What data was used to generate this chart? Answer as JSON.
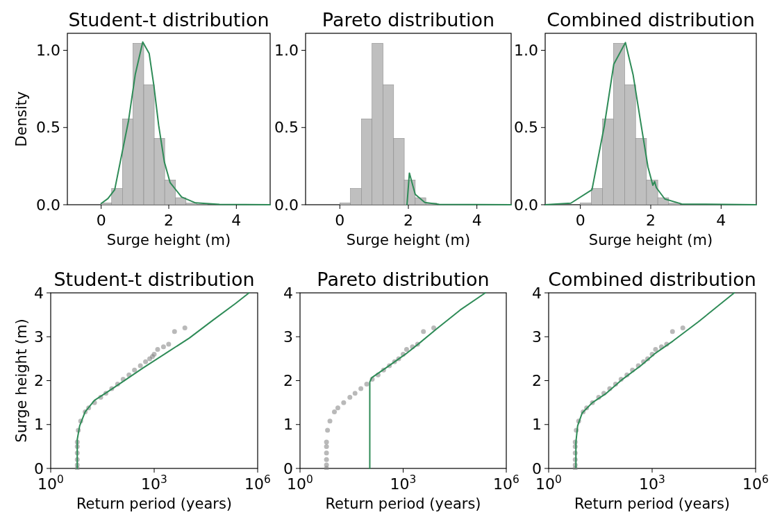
{
  "chart_data": [
    {
      "type": "histogram",
      "title": "Student-t distribution",
      "xlabel": "Surge height (m)",
      "ylabel": "Density",
      "xlim": [
        -1,
        5
      ],
      "ylim": [
        0,
        1.11
      ],
      "xticks": [
        0,
        2,
        4
      ],
      "yticks": [
        {
          "value": 0,
          "label": "0.0"
        },
        {
          "value": 0.5,
          "label": "0.5"
        },
        {
          "value": 1,
          "label": "1.0"
        }
      ],
      "series": [
        {
          "color": "#bfbfbf",
          "bins": [
            0,
            0.31,
            0.63,
            0.94,
            1.26,
            1.57,
            1.88,
            2.2,
            2.51,
            2.83,
            3.14
          ],
          "values": [
            0.012,
            0.105,
            0.556,
            1.045,
            0.777,
            0.43,
            0.16,
            0.045,
            0.01,
            0.003
          ]
        },
        {
          "type": "line",
          "color": "#2e8b57",
          "x": [
            0,
            0.2,
            0.4,
            0.81,
            1.01,
            1.23,
            1.42,
            1.56,
            1.7,
            1.87,
            2.04,
            2.38,
            2.79,
            3.5,
            5
          ],
          "values": [
            0.008,
            0.04,
            0.097,
            0.545,
            0.845,
            1.054,
            0.98,
            0.77,
            0.516,
            0.277,
            0.143,
            0.05,
            0.012,
            0.002,
            0
          ]
        }
      ]
    },
    {
      "type": "histogram",
      "title": "Pareto distribution",
      "xlabel": "Surge height (m)",
      "xlim": [
        -1,
        5
      ],
      "ylim": [
        0,
        1.11
      ],
      "xticks": [
        0,
        2,
        4
      ],
      "yticks": [
        {
          "value": 0,
          "label": "0.0"
        },
        {
          "value": 0.5,
          "label": "0.5"
        },
        {
          "value": 1,
          "label": "1.0"
        }
      ],
      "series": [
        {
          "color": "#bfbfbf",
          "bins": [
            0,
            0.31,
            0.63,
            0.94,
            1.26,
            1.57,
            1.88,
            2.2,
            2.51,
            2.83
          ],
          "values": [
            0.012,
            0.105,
            0.556,
            1.045,
            0.777,
            0.43,
            0.16,
            0.045,
            0.01
          ]
        },
        {
          "type": "line",
          "color": "#2e8b57",
          "x": [
            1.96,
            2.03,
            2.2,
            2.48,
            2.9,
            5
          ],
          "values": [
            0,
            0.205,
            0.067,
            0.015,
            0.002,
            0
          ]
        }
      ]
    },
    {
      "type": "histogram",
      "title": "Combined distribution",
      "xlabel": "Surge height (m)",
      "xlim": [
        -1,
        5
      ],
      "ylim": [
        0,
        1.11
      ],
      "xticks": [
        0,
        2,
        4
      ],
      "yticks": [
        {
          "value": 0,
          "label": "0.0"
        },
        {
          "value": 0.5,
          "label": "0.5"
        },
        {
          "value": 1,
          "label": "1.0"
        }
      ],
      "series": [
        {
          "color": "#bfbfbf",
          "bins": [
            0,
            0.31,
            0.63,
            0.94,
            1.26,
            1.57,
            1.88,
            2.2,
            2.51,
            2.83
          ],
          "values": [
            0.012,
            0.105,
            0.556,
            1.045,
            0.777,
            0.43,
            0.16,
            0.045,
            0.01
          ]
        },
        {
          "type": "line",
          "color": "#2e8b57",
          "x": [
            -1,
            -0.27,
            0.33,
            0.68,
            0.95,
            1.28,
            1.5,
            1.71,
            1.92,
            2.06,
            2.11,
            2.16,
            2.4,
            2.88,
            5
          ],
          "values": [
            0,
            0.01,
            0.097,
            0.51,
            0.91,
            1.05,
            0.84,
            0.54,
            0.245,
            0.126,
            0.15,
            0.11,
            0.037,
            0.005,
            0
          ]
        }
      ]
    },
    {
      "type": "scatter",
      "title": "Student-t distribution",
      "xlabel": "Return period (years)",
      "ylabel": "Surge height (m)",
      "log": "x",
      "xlim": [
        1,
        1000000
      ],
      "ylim": [
        0,
        4
      ],
      "xticks": [
        {
          "value": 1,
          "label": "10$^{0}$"
        },
        {
          "value": 1000,
          "label": "10$^{3}$"
        },
        {
          "value": 1000000,
          "label": "10$^{6}$"
        }
      ],
      "yticks": [
        0,
        1,
        2,
        3,
        4
      ],
      "series": [
        {
          "marker": "circle",
          "color": "#808080",
          "x": [
            5.89,
            5.89,
            5.89,
            5.89,
            5.89,
            5.89,
            6.31,
            7.41,
            10,
            12.6,
            18.6,
            28.2,
            39.8,
            58.9,
            87.1,
            126,
            186,
            269,
            398,
            562,
            741,
            891,
            1000,
            1259,
            1862,
            2630,
            3890,
            7762
          ],
          "values": [
            0,
            0.08,
            0.2,
            0.35,
            0.5,
            0.6,
            0.87,
            1.08,
            1.29,
            1.38,
            1.5,
            1.62,
            1.71,
            1.82,
            1.92,
            2.03,
            2.13,
            2.24,
            2.34,
            2.43,
            2.5,
            2.55,
            2.6,
            2.71,
            2.77,
            2.83,
            3.12,
            3.2
          ]
        },
        {
          "type": "line",
          "color": "#2e8b57",
          "x": [
            5.89,
            5.89,
            6.92,
            10,
            18.6,
            47.9,
            120,
            479,
            2239,
            10471,
            48978,
            229087,
            562341
          ],
          "values": [
            0,
            0.66,
            0.97,
            1.29,
            1.55,
            1.76,
            1.97,
            2.29,
            2.63,
            2.97,
            3.37,
            3.76,
            4
          ]
        }
      ]
    },
    {
      "type": "scatter",
      "title": "Pareto distribution",
      "xlabel": "Return period (years)",
      "log": "x",
      "xlim": [
        1,
        1000000
      ],
      "ylim": [
        0,
        4
      ],
      "xticks": [
        {
          "value": 1,
          "label": "10$^{0}$"
        },
        {
          "value": 1000,
          "label": "10$^{3}$"
        },
        {
          "value": 1000000,
          "label": "10$^{6}$"
        }
      ],
      "yticks": [
        0,
        1,
        2,
        3,
        4
      ],
      "series": [
        {
          "marker": "circle",
          "color": "#808080",
          "x": [
            5.89,
            5.89,
            5.89,
            5.89,
            5.89,
            5.89,
            6.31,
            7.41,
            10,
            12.6,
            18.6,
            28.2,
            39.8,
            58.9,
            87.1,
            126,
            186,
            269,
            398,
            562,
            741,
            1000,
            1259,
            1862,
            2630,
            3890,
            7762
          ],
          "values": [
            0,
            0.08,
            0.2,
            0.35,
            0.5,
            0.6,
            0.87,
            1.08,
            1.29,
            1.38,
            1.5,
            1.62,
            1.71,
            1.82,
            1.92,
            2.03,
            2.13,
            2.24,
            2.34,
            2.43,
            2.5,
            2.6,
            2.71,
            2.77,
            2.83,
            3.12,
            3.2
          ]
        },
        {
          "type": "line",
          "color": "#2e8b57",
          "x": [
            107,
            107,
            123,
            316,
            1202,
            2818,
            9772,
            45709,
            245471
          ],
          "values": [
            0,
            1.97,
            2.07,
            2.29,
            2.61,
            2.84,
            3.19,
            3.61,
            4
          ]
        }
      ]
    },
    {
      "type": "scatter",
      "title": "Combined distribution",
      "xlabel": "Return period (years)",
      "log": "x",
      "xlim": [
        1,
        1000000
      ],
      "ylim": [
        0,
        4
      ],
      "xticks": [
        {
          "value": 1,
          "label": "10$^{0}$"
        },
        {
          "value": 1000,
          "label": "10$^{3}$"
        },
        {
          "value": 1000000,
          "label": "10$^{6}$"
        }
      ],
      "yticks": [
        0,
        1,
        2,
        3,
        4
      ],
      "series": [
        {
          "marker": "circle",
          "color": "#808080",
          "x": [
            5.89,
            5.89,
            5.89,
            5.89,
            5.89,
            5.89,
            6.31,
            7.41,
            10,
            12.6,
            18.6,
            28.2,
            39.8,
            58.9,
            87.1,
            126,
            186,
            269,
            398,
            562,
            741,
            1000,
            1259,
            1862,
            2630,
            3890,
            7762
          ],
          "values": [
            0,
            0.08,
            0.2,
            0.35,
            0.5,
            0.6,
            0.87,
            1.08,
            1.29,
            1.38,
            1.5,
            1.62,
            1.71,
            1.82,
            1.92,
            2.03,
            2.13,
            2.24,
            2.34,
            2.43,
            2.5,
            2.6,
            2.71,
            2.77,
            2.83,
            3.12,
            3.2
          ]
        },
        {
          "type": "line",
          "color": "#2e8b57",
          "x": [
            6.17,
            6.17,
            6.92,
            9.33,
            18.6,
            46.8,
            138,
            468,
            1175,
            3981,
            21878,
            239883
          ],
          "values": [
            0.02,
            0.6,
            0.97,
            1.26,
            1.5,
            1.71,
            2.03,
            2.34,
            2.61,
            2.9,
            3.34,
            4
          ]
        }
      ]
    }
  ]
}
